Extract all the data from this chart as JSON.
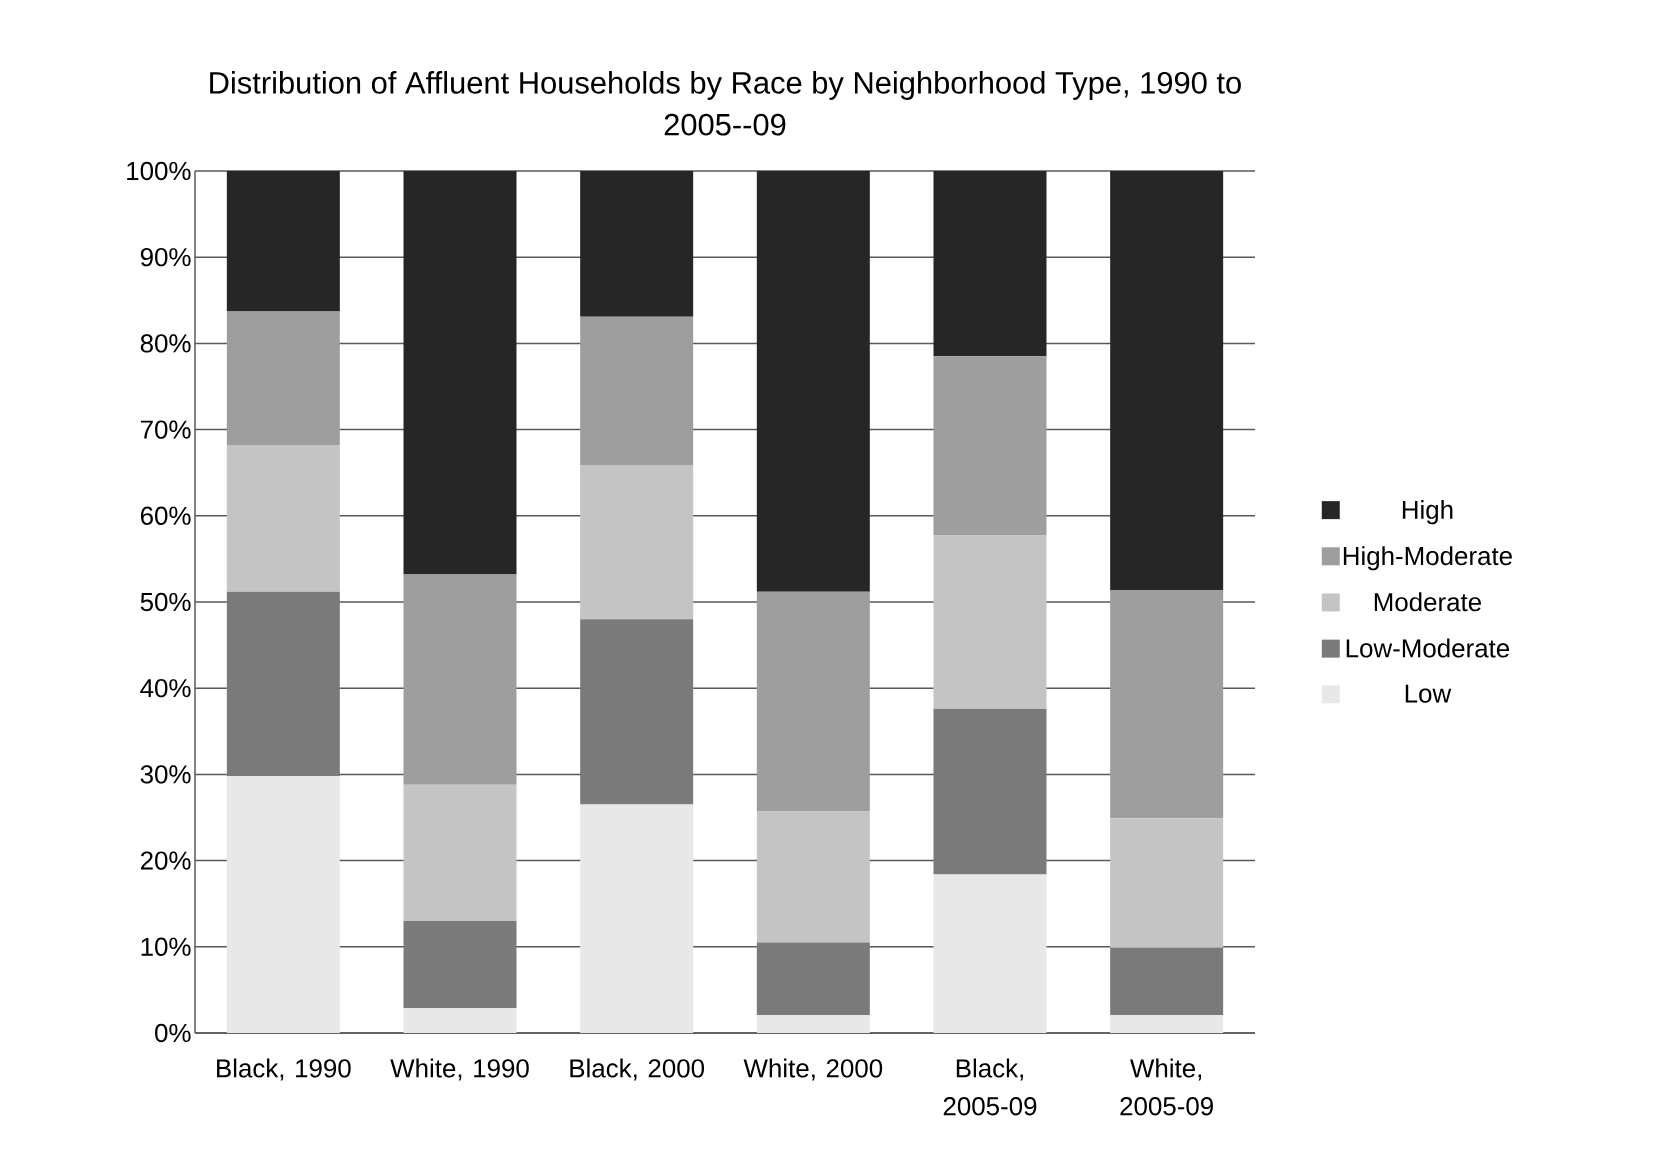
{
  "chart_data": {
    "type": "bar",
    "stacked": true,
    "title": "Distribution of Affluent Households by Race by Neighborhood Type, 1990 to 2005--09",
    "categories": [
      "Black, 1990",
      "White, 1990",
      "Black, 2000",
      "White, 2000",
      "Black, 2005-09",
      "White, 2005-09"
    ],
    "series": [
      {
        "name": "Low",
        "color": "#e8e8e8",
        "values": [
          29.8,
          2.9,
          26.5,
          2.1,
          18.4,
          2.1
        ]
      },
      {
        "name": "Low-Moderate",
        "color": "#7a7a7a",
        "values": [
          21.4,
          10.1,
          21.5,
          8.4,
          19.2,
          7.8
        ]
      },
      {
        "name": "Moderate",
        "color": "#c4c4c4",
        "values": [
          17.0,
          15.8,
          17.9,
          15.2,
          20.1,
          15.0
        ]
      },
      {
        "name": "High-Moderate",
        "color": "#9e9e9e",
        "values": [
          15.5,
          24.4,
          17.2,
          25.5,
          20.8,
          26.5
        ]
      },
      {
        "name": "High",
        "color": "#262626",
        "values": [
          16.3,
          46.8,
          16.9,
          48.8,
          21.5,
          48.6
        ]
      }
    ],
    "ylim": [
      0,
      100
    ],
    "yticks": [
      {
        "value": 0,
        "label": "0%"
      },
      {
        "value": 10,
        "label": "10%"
      },
      {
        "value": 20,
        "label": "20%"
      },
      {
        "value": 30,
        "label": "30%"
      },
      {
        "value": 40,
        "label": "40%"
      },
      {
        "value": 50,
        "label": "50%"
      },
      {
        "value": 60,
        "label": "60%"
      },
      {
        "value": 70,
        "label": "70%"
      },
      {
        "value": 80,
        "label": "80%"
      },
      {
        "value": 90,
        "label": "90%"
      },
      {
        "value": 100,
        "label": "100%"
      }
    ],
    "grid": "y",
    "legend": "right"
  }
}
